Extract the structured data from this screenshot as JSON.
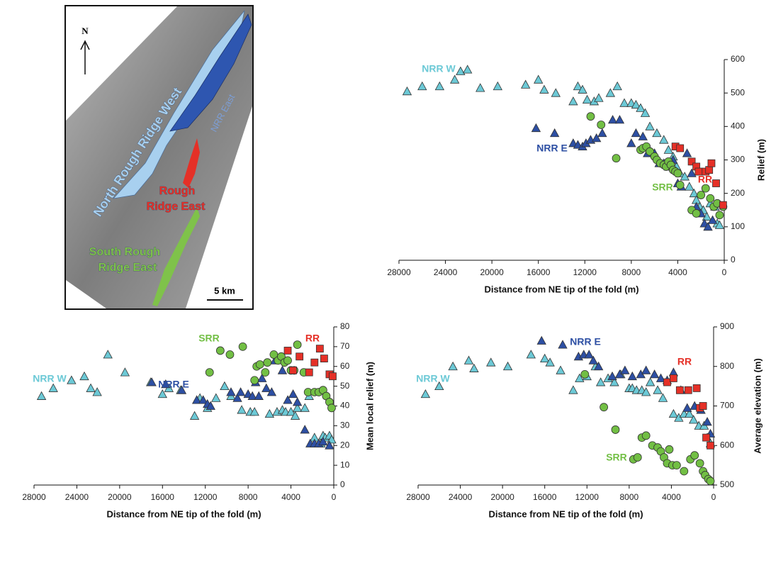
{
  "map": {
    "north": "N",
    "regions": [
      [
        "North Rough Ridge West"
      ],
      [
        "NRR East"
      ],
      [
        "Rough",
        "Ridge East"
      ],
      [
        "South Rough",
        "Ridge East"
      ]
    ],
    "scale": "5 km"
  },
  "chart_data": [
    {
      "type": "scatter",
      "x_label": "Distance from NE tip of the fold (m)",
      "y_label": "Relief (m)",
      "xlim": [
        28000,
        0
      ],
      "xticks": [
        28000,
        24000,
        20000,
        16000,
        12000,
        8000,
        4000,
        0
      ],
      "ylim": [
        0,
        600
      ],
      "yticks": [
        0,
        100,
        200,
        300,
        400,
        500,
        600
      ],
      "series": [
        {
          "name": "NRR W",
          "color": "#6cc9d6",
          "marker": "triangle",
          "x": [
            27300,
            26000,
            24500,
            23200,
            22700,
            22100,
            21000,
            19500,
            17100,
            16000,
            15500,
            14500,
            13000,
            12600,
            12200,
            11800,
            11200,
            10800,
            9800,
            9200,
            8600,
            8000,
            7600,
            7200,
            6800,
            6400,
            5800,
            5200,
            4800,
            4400,
            4100,
            3800,
            3400,
            3000,
            2600,
            2400,
            2100,
            1800,
            1500,
            1200,
            800,
            600,
            400
          ],
          "y": [
            505,
            520,
            520,
            540,
            565,
            570,
            515,
            520,
            525,
            540,
            510,
            500,
            475,
            520,
            510,
            480,
            475,
            485,
            500,
            520,
            470,
            470,
            465,
            455,
            440,
            400,
            380,
            360,
            330,
            310,
            280,
            260,
            250,
            220,
            200,
            180,
            160,
            150,
            130,
            170,
            160,
            110,
            105
          ]
        },
        {
          "name": "NRR E",
          "color": "#2d4fa3",
          "marker": "triangle",
          "x": [
            16200,
            14600,
            13000,
            12600,
            12200,
            11900,
            11500,
            11000,
            10500,
            9600,
            9000,
            8000,
            7600,
            7000,
            6600,
            6000,
            5600,
            5200,
            4800,
            4400,
            4000,
            3700,
            3200,
            2800,
            2400,
            2000,
            1700,
            1400,
            1000
          ],
          "y": [
            395,
            380,
            350,
            345,
            340,
            350,
            360,
            365,
            380,
            420,
            420,
            350,
            380,
            370,
            320,
            320,
            290,
            290,
            280,
            300,
            230,
            220,
            320,
            260,
            160,
            140,
            110,
            100,
            120
          ]
        },
        {
          "name": "SRR",
          "color": "#72bf44",
          "marker": "circle",
          "x": [
            11500,
            10600,
            9300,
            7200,
            7000,
            6700,
            6400,
            6000,
            5800,
            5500,
            5200,
            5000,
            4800,
            4600,
            4400,
            4200,
            4000,
            3800,
            2800,
            2400,
            2000,
            1600,
            1200,
            900,
            600,
            400,
            100
          ],
          "y": [
            430,
            405,
            305,
            330,
            335,
            340,
            325,
            310,
            300,
            290,
            285,
            280,
            295,
            285,
            270,
            265,
            260,
            225,
            150,
            140,
            195,
            215,
            185,
            160,
            170,
            135,
            160
          ]
        },
        {
          "name": "RR",
          "color": "#e53027",
          "marker": "square",
          "x": [
            4200,
            3800,
            2800,
            2400,
            2200,
            1600,
            1300,
            1100,
            700,
            100
          ],
          "y": [
            340,
            335,
            295,
            280,
            265,
            265,
            270,
            290,
            230,
            165
          ]
        }
      ]
    },
    {
      "type": "scatter",
      "x_label": "Distance from NE tip of the fold (m)",
      "y_label": "Mean local relief (m)",
      "xlim": [
        28000,
        0
      ],
      "xticks": [
        28000,
        24000,
        20000,
        16000,
        12000,
        8000,
        4000,
        0
      ],
      "ylim": [
        0,
        80
      ],
      "yticks": [
        0,
        10,
        20,
        30,
        40,
        50,
        60,
        70,
        80
      ],
      "series": [
        {
          "name": "NRR W",
          "color": "#6cc9d6",
          "marker": "triangle",
          "x": [
            27300,
            26200,
            24500,
            23300,
            22700,
            22100,
            21100,
            19500,
            17100,
            16000,
            15400,
            14300,
            13000,
            12500,
            11800,
            11000,
            10200,
            9600,
            8600,
            7800,
            7400,
            6000,
            5300,
            4800,
            4500,
            4000,
            3600,
            3400,
            2700,
            2300,
            1800,
            1200,
            1000,
            800,
            400,
            200
          ],
          "y": [
            45,
            49,
            53,
            55,
            49,
            47,
            66,
            57,
            52,
            46,
            49,
            48,
            35,
            44,
            39,
            44,
            50,
            45,
            38,
            37,
            37,
            36,
            37,
            38,
            37,
            37,
            35,
            39,
            39,
            45,
            24,
            21,
            25,
            24,
            25,
            23
          ]
        },
        {
          "name": "NRR E",
          "color": "#2d4fa3",
          "marker": "triangle",
          "x": [
            17000,
            15700,
            14200,
            12800,
            12200,
            11800,
            11500,
            9600,
            9000,
            8700,
            8000,
            7600,
            7300,
            7000,
            6700,
            6300,
            5800,
            5500,
            4800,
            4300,
            3800,
            3400,
            2700,
            2200,
            1800,
            1400,
            1000,
            400
          ],
          "y": [
            52,
            51,
            48,
            43,
            43,
            41,
            40,
            47,
            44,
            47,
            46,
            45,
            52,
            45,
            54,
            49,
            47,
            63,
            58,
            43,
            46,
            42,
            28,
            21,
            21,
            21,
            22,
            20
          ]
        },
        {
          "name": "SRR",
          "color": "#72bf44",
          "marker": "circle",
          "x": [
            11600,
            10600,
            9700,
            8500,
            7400,
            7200,
            6900,
            6400,
            6200,
            5600,
            5200,
            4900,
            4600,
            4300,
            4000,
            3700,
            3400,
            2800,
            2400,
            1800,
            1400,
            1000,
            700,
            400,
            200
          ],
          "y": [
            57,
            68,
            66,
            70,
            53,
            60,
            61,
            57,
            62,
            66,
            63,
            65,
            62,
            63,
            58,
            58,
            71,
            57,
            47,
            47,
            47,
            48,
            45,
            42,
            39
          ]
        },
        {
          "name": "RR",
          "color": "#e53027",
          "marker": "square",
          "x": [
            4300,
            3800,
            3200,
            2300,
            1800,
            1300,
            900,
            400,
            100
          ],
          "y": [
            68,
            58,
            65,
            57,
            62,
            69,
            64,
            56,
            55
          ]
        }
      ]
    },
    {
      "type": "scatter",
      "x_label": "Distance from NE tip of the fold (m)",
      "y_label": "Average elevation (m)",
      "xlim": [
        28000,
        0
      ],
      "xticks": [
        28000,
        24000,
        20000,
        16000,
        12000,
        8000,
        4000,
        0
      ],
      "ylim": [
        500,
        900
      ],
      "yticks": [
        500,
        600,
        700,
        800,
        900
      ],
      "series": [
        {
          "name": "NRR W",
          "color": "#6cc9d6",
          "marker": "triangle",
          "x": [
            27300,
            26000,
            24700,
            23200,
            22700,
            21100,
            19500,
            17300,
            16000,
            15500,
            14500,
            13300,
            12700,
            12000,
            11200,
            10700,
            10000,
            9400,
            8800,
            8000,
            7700,
            7300,
            6800,
            6400,
            6000,
            5300,
            4800,
            3800,
            3300,
            2800,
            2300,
            1900,
            1400,
            900,
            600,
            300
          ],
          "y": [
            730,
            750,
            800,
            815,
            795,
            810,
            800,
            830,
            820,
            810,
            790,
            740,
            770,
            775,
            800,
            760,
            770,
            760,
            780,
            745,
            745,
            740,
            740,
            735,
            760,
            740,
            720,
            680,
            670,
            680,
            680,
            665,
            650,
            650,
            620,
            605
          ]
        },
        {
          "name": "NRR E",
          "color": "#2d4fa3",
          "marker": "triangle",
          "x": [
            16300,
            14300,
            12800,
            12300,
            11800,
            11400,
            10900,
            9600,
            8900,
            8400,
            7700,
            6900,
            6400,
            5600,
            5000,
            4400,
            3800,
            3100,
            2500,
            1800,
            1200,
            600,
            300
          ],
          "y": [
            865,
            855,
            825,
            830,
            830,
            815,
            800,
            775,
            780,
            790,
            775,
            780,
            790,
            780,
            770,
            765,
            785,
            740,
            695,
            700,
            690,
            660,
            630
          ]
        },
        {
          "name": "SRR",
          "color": "#72bf44",
          "marker": "circle",
          "x": [
            12200,
            10400,
            9300,
            7600,
            7200,
            6800,
            6400,
            5800,
            5300,
            5000,
            4700,
            4400,
            4200,
            3900,
            3500,
            2800,
            2200,
            1800,
            1300,
            1000,
            800,
            500,
            300
          ],
          "y": [
            780,
            697,
            640,
            565,
            570,
            620,
            625,
            600,
            595,
            585,
            570,
            555,
            590,
            550,
            550,
            535,
            565,
            575,
            555,
            535,
            525,
            515,
            510
          ]
        },
        {
          "name": "RR",
          "color": "#e53027",
          "marker": "square",
          "x": [
            4400,
            3800,
            3200,
            2400,
            1600,
            1300,
            1000,
            700,
            300
          ],
          "y": [
            760,
            770,
            740,
            740,
            745,
            695,
            700,
            620,
            600
          ]
        }
      ]
    }
  ]
}
